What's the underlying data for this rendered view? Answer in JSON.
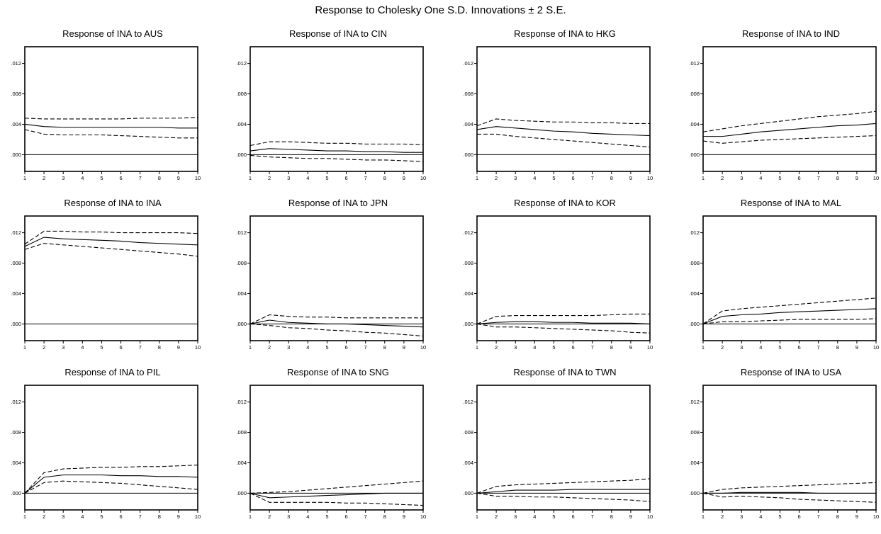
{
  "figure": {
    "title": "Response to Cholesky One S.D. Innovations ± 2 S.E."
  },
  "chart_data": [
    {
      "type": "line",
      "title": "Response of INA to AUS",
      "x": [
        1,
        2,
        3,
        4,
        5,
        6,
        7,
        8,
        9,
        10
      ],
      "ylim": [
        -0.0022,
        0.0142
      ],
      "yticks": [
        ".000",
        ".004",
        ".008",
        ".012"
      ],
      "series": [
        {
          "style": "solid",
          "values": [
            0.004,
            0.0037,
            0.0036,
            0.0036,
            0.0036,
            0.0036,
            0.0036,
            0.0036,
            0.0035,
            0.0035
          ]
        },
        {
          "style": "dashed",
          "values": [
            0.0048,
            0.0047,
            0.0047,
            0.0047,
            0.0047,
            0.0047,
            0.0048,
            0.0048,
            0.0048,
            0.0049
          ]
        },
        {
          "style": "dashed",
          "values": [
            0.0033,
            0.0027,
            0.0026,
            0.0026,
            0.0026,
            0.0025,
            0.0024,
            0.0023,
            0.0022,
            0.0022
          ]
        }
      ]
    },
    {
      "type": "line",
      "title": "Response of INA to CIN",
      "x": [
        1,
        2,
        3,
        4,
        5,
        6,
        7,
        8,
        9,
        10
      ],
      "ylim": [
        -0.0022,
        0.0142
      ],
      "yticks": [
        ".000",
        ".004",
        ".008",
        ".012"
      ],
      "series": [
        {
          "style": "solid",
          "values": [
            0.0005,
            0.0008,
            0.0007,
            0.0006,
            0.0005,
            0.0005,
            0.0004,
            0.0004,
            0.0003,
            0.0003
          ]
        },
        {
          "style": "dashed",
          "values": [
            0.0012,
            0.0017,
            0.0017,
            0.0016,
            0.0015,
            0.0015,
            0.0014,
            0.0014,
            0.0014,
            0.0013
          ]
        },
        {
          "style": "dashed",
          "values": [
            -0.0001,
            -0.0003,
            -0.0004,
            -0.0005,
            -0.0005,
            -0.0006,
            -0.0007,
            -0.0007,
            -0.0008,
            -0.0009
          ]
        }
      ]
    },
    {
      "type": "line",
      "title": "Response of INA to HKG",
      "x": [
        1,
        2,
        3,
        4,
        5,
        6,
        7,
        8,
        9,
        10
      ],
      "ylim": [
        -0.0022,
        0.0142
      ],
      "yticks": [
        ".000",
        ".004",
        ".008",
        ".012"
      ],
      "series": [
        {
          "style": "solid",
          "values": [
            0.0033,
            0.0037,
            0.0035,
            0.0033,
            0.0031,
            0.003,
            0.0028,
            0.0027,
            0.0026,
            0.0025
          ]
        },
        {
          "style": "dashed",
          "values": [
            0.0038,
            0.0047,
            0.0045,
            0.0044,
            0.0043,
            0.0043,
            0.0042,
            0.0042,
            0.0041,
            0.0041
          ]
        },
        {
          "style": "dashed",
          "values": [
            0.0027,
            0.0027,
            0.0024,
            0.0022,
            0.002,
            0.0018,
            0.0016,
            0.0014,
            0.0012,
            0.001
          ]
        }
      ]
    },
    {
      "type": "line",
      "title": "Response of INA to IND",
      "x": [
        1,
        2,
        3,
        4,
        5,
        6,
        7,
        8,
        9,
        10
      ],
      "ylim": [
        -0.0022,
        0.0142
      ],
      "yticks": [
        ".000",
        ".004",
        ".008",
        ".012"
      ],
      "series": [
        {
          "style": "solid",
          "values": [
            0.0024,
            0.0024,
            0.0027,
            0.003,
            0.0032,
            0.0034,
            0.0036,
            0.0038,
            0.0039,
            0.0041
          ]
        },
        {
          "style": "dashed",
          "values": [
            0.003,
            0.0034,
            0.0038,
            0.0041,
            0.0044,
            0.0047,
            0.005,
            0.0052,
            0.0054,
            0.0057
          ]
        },
        {
          "style": "dashed",
          "values": [
            0.0018,
            0.0015,
            0.0017,
            0.0019,
            0.002,
            0.0021,
            0.0022,
            0.0023,
            0.0024,
            0.0025
          ]
        }
      ]
    },
    {
      "type": "line",
      "title": "Response of INA to INA",
      "x": [
        1,
        2,
        3,
        4,
        5,
        6,
        7,
        8,
        9,
        10
      ],
      "ylim": [
        -0.0022,
        0.0142
      ],
      "yticks": [
        ".000",
        ".004",
        ".008",
        ".012"
      ],
      "series": [
        {
          "style": "solid",
          "values": [
            0.0102,
            0.0114,
            0.0112,
            0.0111,
            0.011,
            0.0109,
            0.0107,
            0.0106,
            0.0105,
            0.0104
          ]
        },
        {
          "style": "dashed",
          "values": [
            0.0105,
            0.0122,
            0.0122,
            0.0121,
            0.0121,
            0.012,
            0.012,
            0.012,
            0.012,
            0.0119
          ]
        },
        {
          "style": "dashed",
          "values": [
            0.0098,
            0.0106,
            0.0104,
            0.0102,
            0.01,
            0.0098,
            0.0096,
            0.0094,
            0.0092,
            0.0089
          ]
        }
      ]
    },
    {
      "type": "line",
      "title": "Response of INA to JPN",
      "x": [
        1,
        2,
        3,
        4,
        5,
        6,
        7,
        8,
        9,
        10
      ],
      "ylim": [
        -0.0022,
        0.0142
      ],
      "yticks": [
        ".000",
        ".004",
        ".008",
        ".012"
      ],
      "series": [
        {
          "style": "solid",
          "values": [
            0.0,
            0.0005,
            0.0002,
            0.0001,
            0.0,
            0.0,
            -0.0001,
            -0.0002,
            -0.0003,
            -0.0004
          ]
        },
        {
          "style": "dashed",
          "values": [
            0.0,
            0.0012,
            0.001,
            0.0009,
            0.0009,
            0.0008,
            0.0008,
            0.0008,
            0.0008,
            0.0008
          ]
        },
        {
          "style": "dashed",
          "values": [
            0.0,
            -0.0002,
            -0.0005,
            -0.0006,
            -0.0008,
            -0.0009,
            -0.0011,
            -0.0012,
            -0.0014,
            -0.0016
          ]
        }
      ]
    },
    {
      "type": "line",
      "title": "Response of INA to KOR",
      "x": [
        1,
        2,
        3,
        4,
        5,
        6,
        7,
        8,
        9,
        10
      ],
      "ylim": [
        -0.0022,
        0.0142
      ],
      "yticks": [
        ".000",
        ".004",
        ".008",
        ".012"
      ],
      "series": [
        {
          "style": "solid",
          "values": [
            0.0,
            0.0002,
            0.0003,
            0.0003,
            0.0002,
            0.0002,
            0.0001,
            0.0001,
            0.0001,
            0.0
          ]
        },
        {
          "style": "dashed",
          "values": [
            0.0,
            0.001,
            0.0011,
            0.0011,
            0.0011,
            0.0011,
            0.0011,
            0.0012,
            0.0013,
            0.0013
          ]
        },
        {
          "style": "dashed",
          "values": [
            0.0,
            -0.0004,
            -0.0004,
            -0.0005,
            -0.0006,
            -0.0007,
            -0.0008,
            -0.0009,
            -0.0011,
            -0.0012
          ]
        }
      ]
    },
    {
      "type": "line",
      "title": "Response of INA to MAL",
      "x": [
        1,
        2,
        3,
        4,
        5,
        6,
        7,
        8,
        9,
        10
      ],
      "ylim": [
        -0.0022,
        0.0142
      ],
      "yticks": [
        ".000",
        ".004",
        ".008",
        ".012"
      ],
      "series": [
        {
          "style": "solid",
          "values": [
            0.0,
            0.001,
            0.0012,
            0.0013,
            0.0015,
            0.0016,
            0.0017,
            0.0018,
            0.0019,
            0.002
          ]
        },
        {
          "style": "dashed",
          "values": [
            0.0,
            0.0017,
            0.002,
            0.0022,
            0.0024,
            0.0026,
            0.0028,
            0.003,
            0.0032,
            0.0034
          ]
        },
        {
          "style": "dashed",
          "values": [
            0.0,
            0.0003,
            0.0003,
            0.0004,
            0.0005,
            0.0006,
            0.0006,
            0.0006,
            0.0006,
            0.0007
          ]
        }
      ]
    },
    {
      "type": "line",
      "title": "Response of INA to PIL",
      "x": [
        1,
        2,
        3,
        4,
        5,
        6,
        7,
        8,
        9,
        10
      ],
      "ylim": [
        -0.0022,
        0.0142
      ],
      "yticks": [
        ".000",
        ".004",
        ".008",
        ".012"
      ],
      "series": [
        {
          "style": "solid",
          "values": [
            0.0,
            0.0021,
            0.0024,
            0.0024,
            0.0024,
            0.0023,
            0.0023,
            0.0022,
            0.0022,
            0.0021
          ]
        },
        {
          "style": "dashed",
          "values": [
            0.0,
            0.0027,
            0.0032,
            0.0033,
            0.0034,
            0.0034,
            0.0035,
            0.0035,
            0.0036,
            0.0037
          ]
        },
        {
          "style": "dashed",
          "values": [
            0.0,
            0.0014,
            0.0016,
            0.0015,
            0.0014,
            0.0013,
            0.0011,
            0.0009,
            0.0007,
            0.0005
          ]
        }
      ]
    },
    {
      "type": "line",
      "title": "Response of INA to SNG",
      "x": [
        1,
        2,
        3,
        4,
        5,
        6,
        7,
        8,
        9,
        10
      ],
      "ylim": [
        -0.0022,
        0.0142
      ],
      "yticks": [
        ".000",
        ".004",
        ".008",
        ".012"
      ],
      "series": [
        {
          "style": "solid",
          "values": [
            0.0,
            -0.0006,
            -0.0005,
            -0.0004,
            -0.0003,
            -0.0002,
            -0.0001,
            0.0,
            0.0,
            0.0
          ]
        },
        {
          "style": "dashed",
          "values": [
            0.0,
            0.0001,
            0.0002,
            0.0004,
            0.0006,
            0.0008,
            0.001,
            0.0012,
            0.0014,
            0.0016
          ]
        },
        {
          "style": "dashed",
          "values": [
            0.0,
            -0.0012,
            -0.0012,
            -0.0012,
            -0.0012,
            -0.0013,
            -0.0013,
            -0.0014,
            -0.0015,
            -0.0016
          ]
        }
      ]
    },
    {
      "type": "line",
      "title": "Response of INA to TWN",
      "x": [
        1,
        2,
        3,
        4,
        5,
        6,
        7,
        8,
        9,
        10
      ],
      "ylim": [
        -0.0022,
        0.0142
      ],
      "yticks": [
        ".000",
        ".004",
        ".008",
        ".012"
      ],
      "series": [
        {
          "style": "solid",
          "values": [
            0.0,
            0.0002,
            0.0004,
            0.0004,
            0.0004,
            0.0005,
            0.0005,
            0.0005,
            0.0005,
            0.0005
          ]
        },
        {
          "style": "dashed",
          "values": [
            0.0,
            0.0009,
            0.0011,
            0.0012,
            0.0013,
            0.0014,
            0.0015,
            0.0016,
            0.0017,
            0.0019
          ]
        },
        {
          "style": "dashed",
          "values": [
            0.0,
            -0.0004,
            -0.0004,
            -0.0005,
            -0.0005,
            -0.0006,
            -0.0007,
            -0.0008,
            -0.0009,
            -0.0011
          ]
        }
      ]
    },
    {
      "type": "line",
      "title": "Response of INA to USA",
      "x": [
        1,
        2,
        3,
        4,
        5,
        6,
        7,
        8,
        9,
        10
      ],
      "ylim": [
        -0.0022,
        0.0142
      ],
      "yticks": [
        ".000",
        ".004",
        ".008",
        ".012"
      ],
      "series": [
        {
          "style": "solid",
          "values": [
            0.0,
            0.0,
            0.0001,
            0.0001,
            0.0001,
            0.0001,
            0.0,
            0.0,
            0.0,
            0.0
          ]
        },
        {
          "style": "dashed",
          "values": [
            0.0,
            0.0005,
            0.0007,
            0.0008,
            0.0009,
            0.001,
            0.0011,
            0.0012,
            0.0013,
            0.0014
          ]
        },
        {
          "style": "dashed",
          "values": [
            0.0,
            -0.0005,
            -0.0004,
            -0.0005,
            -0.0006,
            -0.0008,
            -0.0009,
            -0.001,
            -0.0011,
            -0.0012
          ]
        }
      ]
    }
  ]
}
